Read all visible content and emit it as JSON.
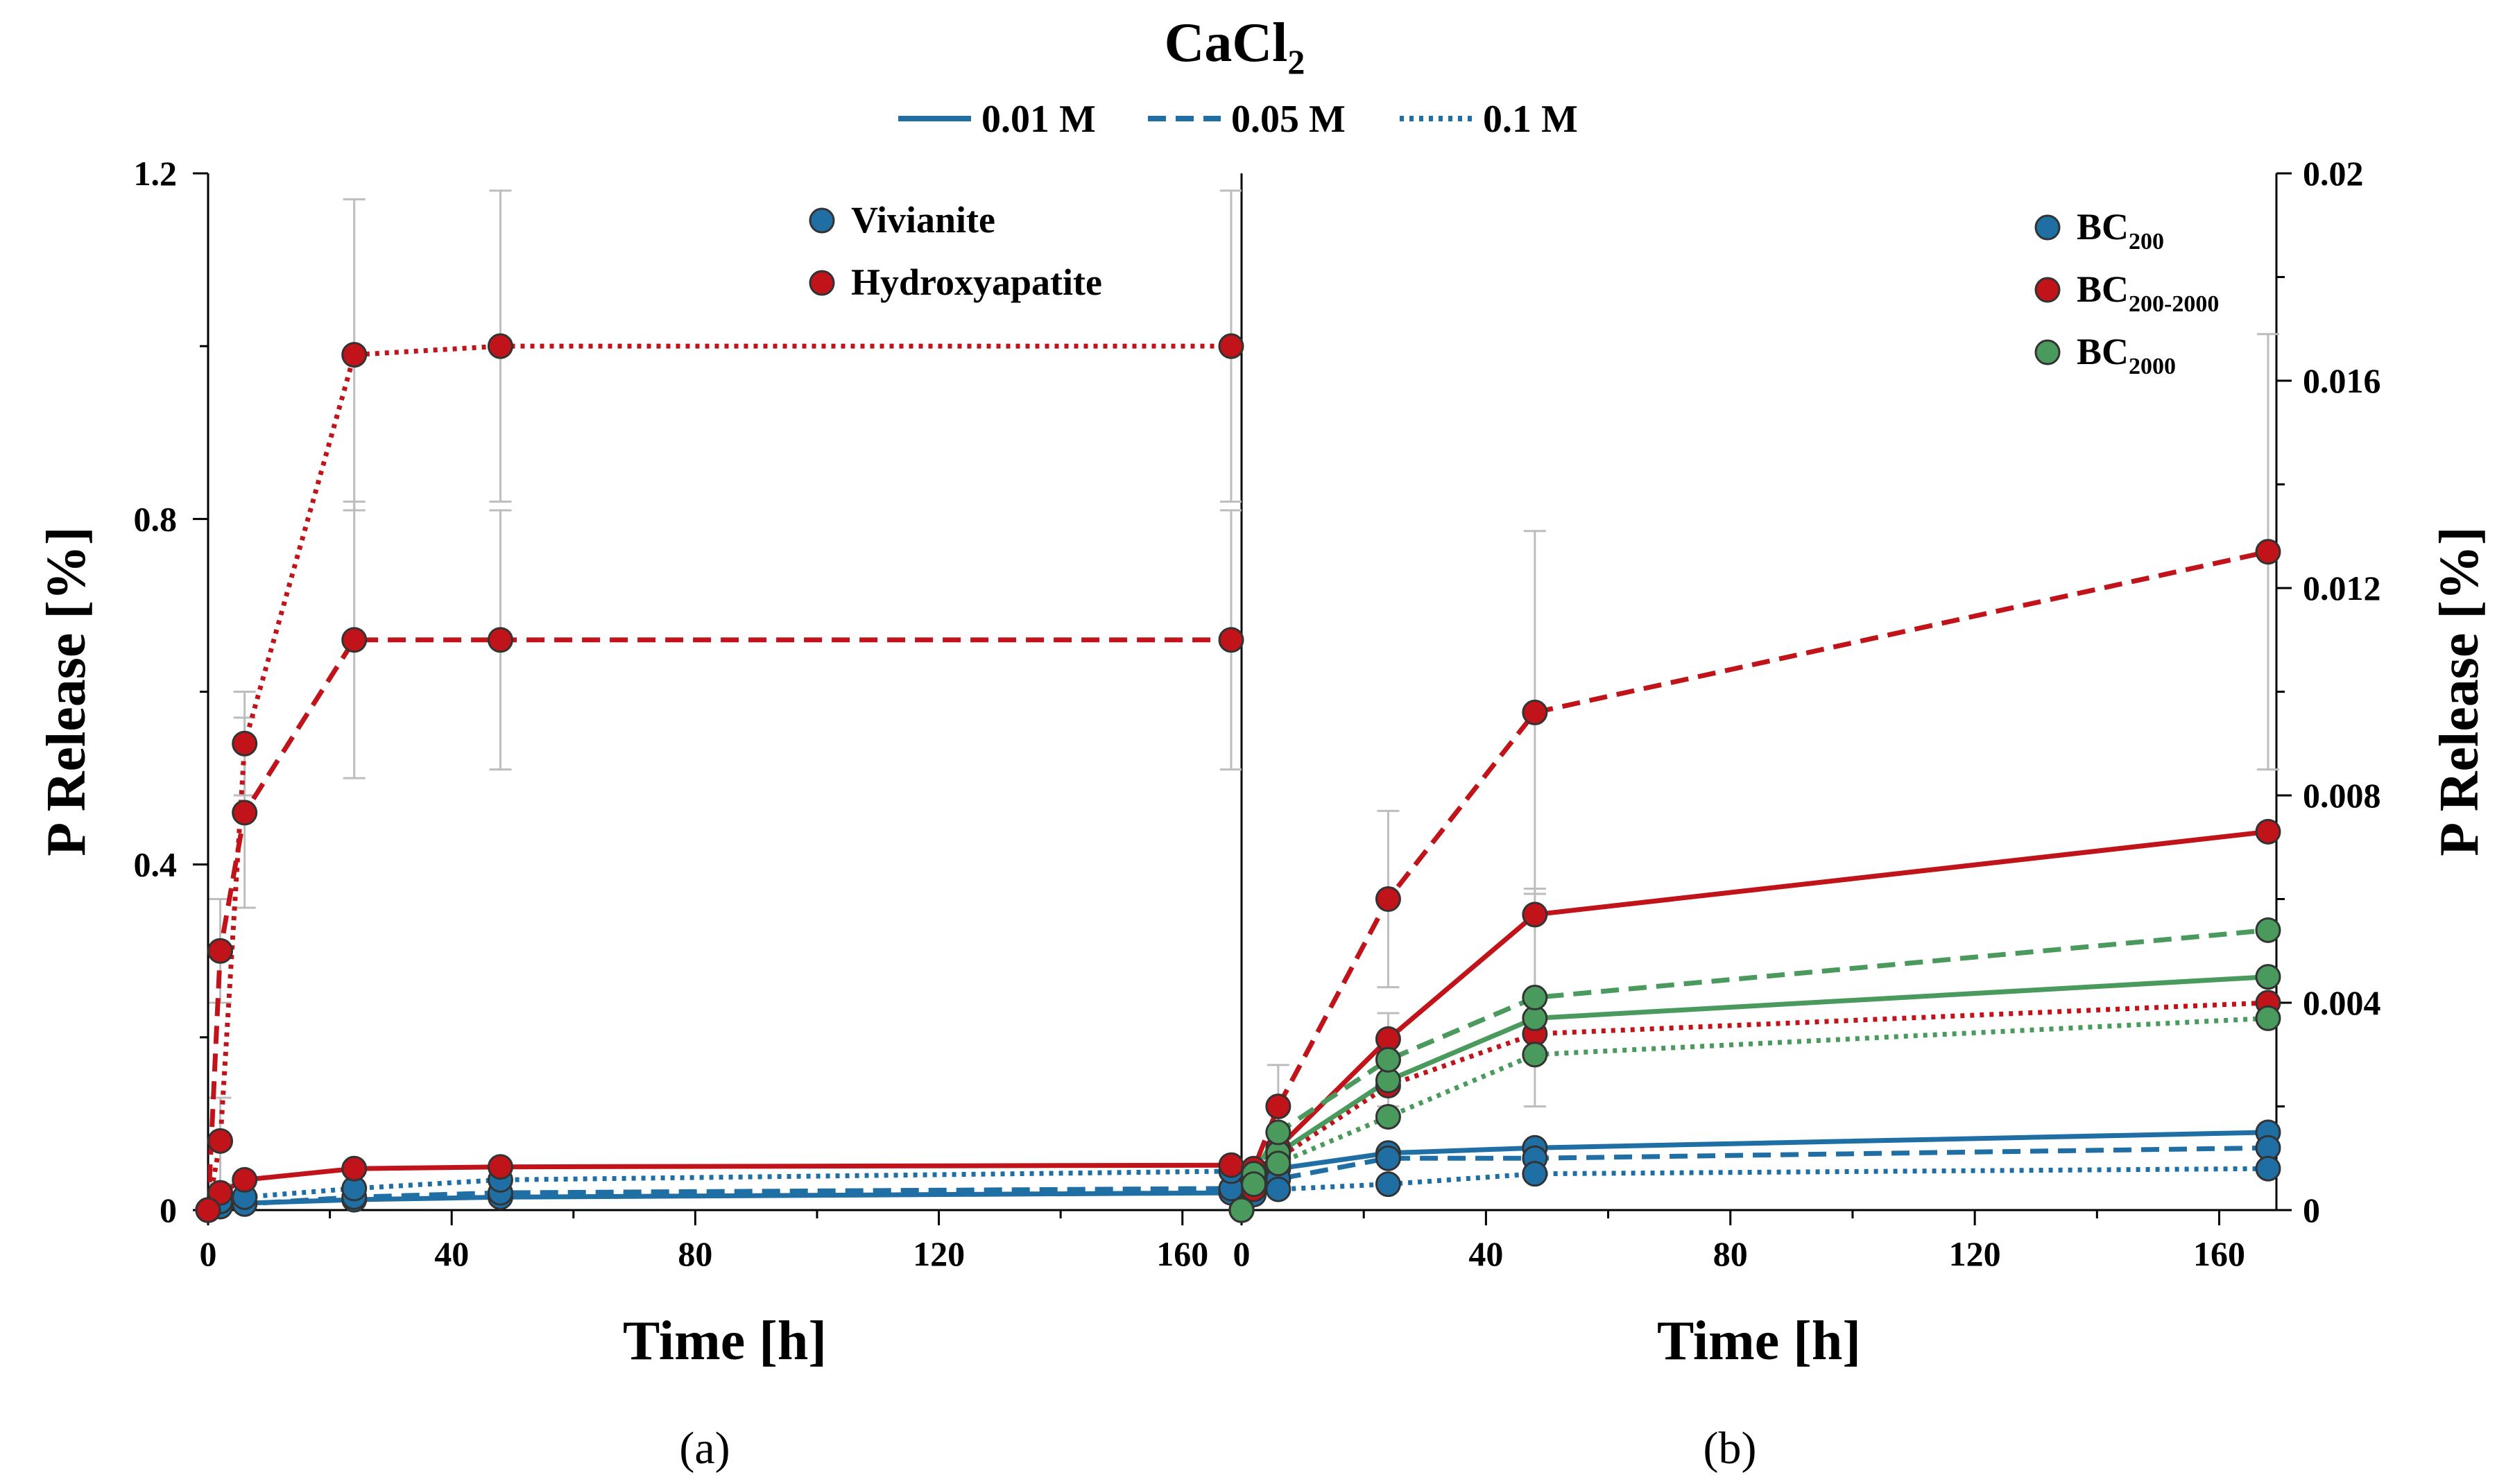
{
  "header": {
    "title_main": "CaCl",
    "title_sub": "2",
    "styles": [
      {
        "label": "0.01 M",
        "dash": "solid"
      },
      {
        "label": "0.05 M",
        "dash": "dashed"
      },
      {
        "label": "0.1 M",
        "dash": "dotted"
      }
    ],
    "legend_color": "#1f6fa5"
  },
  "captions": {
    "a": "(a)",
    "b": "(b)"
  },
  "colors": {
    "blue": "#1f6fa5",
    "red": "#c0141a",
    "green": "#4a9a5e",
    "error_bar": "#bdbdbd"
  },
  "chart_data": [
    {
      "type": "line",
      "panel": "a",
      "xlabel": "Time [h]",
      "ylabel": "P Release [%]",
      "xlim": [
        0,
        168
      ],
      "ylim": [
        0,
        1.2
      ],
      "xticks": [
        0,
        40,
        80,
        120,
        160
      ],
      "xtick_labels": [
        "0",
        "40",
        "80",
        "120",
        "160"
      ],
      "yticks": [
        0,
        0.4,
        0.8,
        1.2
      ],
      "ytick_labels": [
        "0",
        "0.4",
        "0.8",
        "1.2"
      ],
      "grid": false,
      "legend_position": "top-right",
      "legend": [
        {
          "label": "Vivianite",
          "sub": "",
          "color": "blue"
        },
        {
          "label": "Hydroxyapatite",
          "sub": "",
          "color": "red"
        }
      ],
      "x": [
        0,
        2,
        6,
        24,
        48,
        168
      ],
      "series": [
        {
          "name": "Vivianite",
          "concentration": "0.01 M",
          "color": "blue",
          "dash": "solid",
          "values": [
            0,
            0.005,
            0.008,
            0.012,
            0.015,
            0.02
          ],
          "err": [
            0,
            0,
            0,
            0,
            0,
            0
          ]
        },
        {
          "name": "Vivianite",
          "concentration": "0.05 M",
          "color": "blue",
          "dash": "dashed",
          "values": [
            0,
            0.004,
            0.007,
            0.015,
            0.02,
            0.025
          ],
          "err": [
            0,
            0,
            0,
            0,
            0,
            0
          ]
        },
        {
          "name": "Vivianite",
          "concentration": "0.1 M",
          "color": "blue",
          "dash": "dotted",
          "values": [
            0,
            0.01,
            0.015,
            0.025,
            0.035,
            0.045
          ],
          "err": [
            0,
            0,
            0,
            0,
            0,
            0
          ]
        },
        {
          "name": "Hydroxyapatite",
          "concentration": "0.01 M",
          "color": "red",
          "dash": "solid",
          "values": [
            0,
            0.02,
            0.035,
            0.048,
            0.05,
            0.052
          ],
          "err": [
            0,
            0,
            0,
            0,
            0,
            0
          ]
        },
        {
          "name": "Hydroxyapatite",
          "concentration": "0.05 M",
          "color": "red",
          "dash": "dashed",
          "values": [
            0,
            0.3,
            0.46,
            0.66,
            0.66,
            0.66
          ],
          "err": [
            0,
            0.06,
            0.11,
            0.16,
            0.15,
            0.15
          ]
        },
        {
          "name": "Hydroxyapatite",
          "concentration": "0.1 M",
          "color": "red",
          "dash": "dotted",
          "values": [
            0,
            0.08,
            0.54,
            0.99,
            1.0,
            1.0
          ],
          "err": [
            0,
            0.05,
            0.06,
            0.18,
            0.18,
            0.18
          ]
        }
      ]
    },
    {
      "type": "line",
      "panel": "b",
      "xlabel": "Time [h]",
      "ylabel": "P Release [%]",
      "xlim": [
        0,
        168
      ],
      "ylim": [
        0,
        0.02
      ],
      "xticks": [
        0,
        40,
        80,
        120,
        160
      ],
      "xtick_labels": [
        "0",
        "40",
        "80",
        "120",
        "160"
      ],
      "yticks": [
        0,
        0.004,
        0.008,
        0.012,
        0.016,
        0.02
      ],
      "ytick_labels": [
        "0",
        "0.004",
        "0.008",
        "0.012",
        "0.016",
        "0.02"
      ],
      "grid": false,
      "legend_position": "top-right",
      "legend": [
        {
          "label": "BC",
          "sub": "200",
          "color": "blue"
        },
        {
          "label": "BC",
          "sub": "200-2000",
          "color": "red"
        },
        {
          "label": "BC",
          "sub": "2000",
          "color": "green"
        }
      ],
      "x": [
        0,
        2,
        6,
        24,
        48,
        168
      ],
      "series": [
        {
          "name": "BC200",
          "concentration": "0.01 M",
          "color": "blue",
          "dash": "solid",
          "values": [
            0,
            0.0005,
            0.0008,
            0.0011,
            0.0012,
            0.0015
          ],
          "err": [
            0,
            0,
            0,
            0,
            0,
            0
          ]
        },
        {
          "name": "BC200",
          "concentration": "0.05 M",
          "color": "blue",
          "dash": "dashed",
          "values": [
            0,
            0.0004,
            0.0006,
            0.001,
            0.001,
            0.0012
          ],
          "err": [
            0,
            0,
            0,
            0,
            0,
            0
          ]
        },
        {
          "name": "BC200",
          "concentration": "0.1 M",
          "color": "blue",
          "dash": "dotted",
          "values": [
            0,
            0.0003,
            0.0004,
            0.0005,
            0.0007,
            0.0008
          ],
          "err": [
            0,
            0,
            0,
            0,
            0,
            0
          ]
        },
        {
          "name": "BC200-2000",
          "concentration": "0.01 M",
          "color": "red",
          "dash": "solid",
          "values": [
            0,
            0.0006,
            0.0012,
            0.0033,
            0.0057,
            0.0073
          ],
          "err": [
            0,
            0,
            0,
            0,
            0,
            0
          ]
        },
        {
          "name": "BC200-2000",
          "concentration": "0.05 M",
          "color": "red",
          "dash": "dashed",
          "values": [
            0,
            0.0008,
            0.002,
            0.006,
            0.0096,
            0.0127
          ],
          "err": [
            0,
            0,
            0.0008,
            0.0017,
            0.0035,
            0.0042
          ]
        },
        {
          "name": "BC200-2000",
          "concentration": "0.1 M",
          "color": "red",
          "dash": "dotted",
          "values": [
            0,
            0.0004,
            0.001,
            0.0024,
            0.0034,
            0.004
          ],
          "err": [
            0,
            0,
            0,
            0,
            0,
            0
          ]
        },
        {
          "name": "BC2000",
          "concentration": "0.01 M",
          "color": "green",
          "dash": "solid",
          "values": [
            0,
            0.0006,
            0.0011,
            0.0025,
            0.0037,
            0.0045
          ],
          "err": [
            0,
            0,
            0,
            0,
            0,
            0
          ]
        },
        {
          "name": "BC2000",
          "concentration": "0.05 M",
          "color": "green",
          "dash": "dashed",
          "values": [
            0,
            0.0007,
            0.0015,
            0.0029,
            0.0041,
            0.0054
          ],
          "err": [
            0,
            0,
            0,
            0.0009,
            0.0021,
            0
          ]
        },
        {
          "name": "BC2000",
          "concentration": "0.1 M",
          "color": "green",
          "dash": "dotted",
          "values": [
            0,
            0.0005,
            0.0009,
            0.0018,
            0.003,
            0.0037
          ],
          "err": [
            0,
            0,
            0,
            0,
            0,
            0
          ]
        }
      ]
    }
  ]
}
